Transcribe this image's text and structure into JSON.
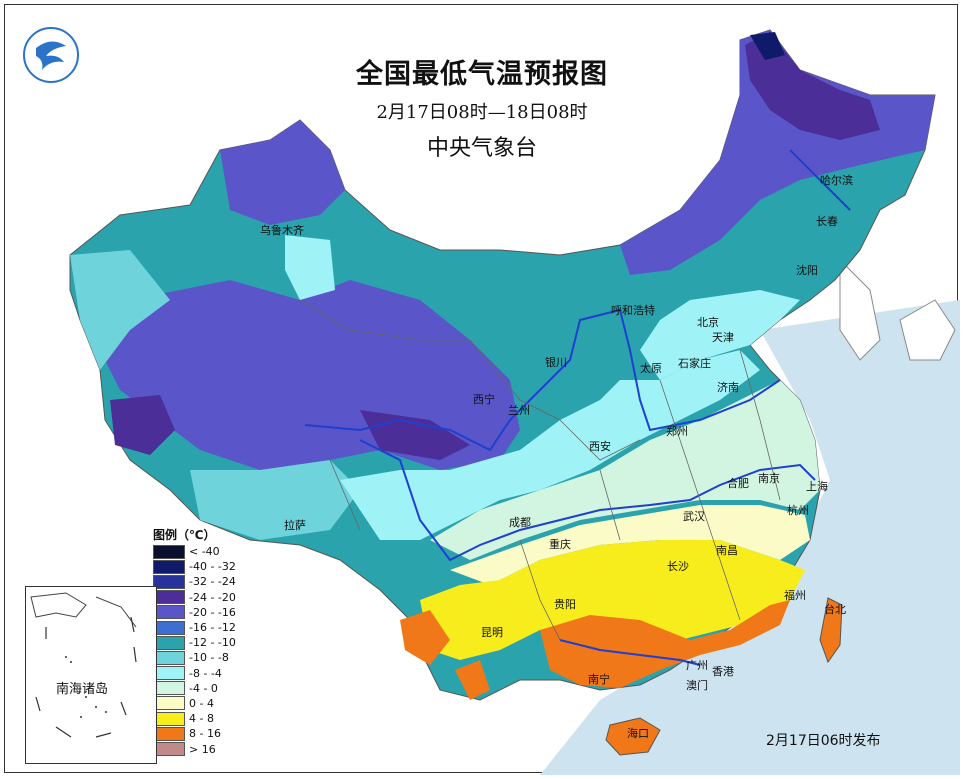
{
  "title": "全国最低气温预报图",
  "subtitle": "2月17日08时—18日08时",
  "issuer": "中央气象台",
  "issued_at": "2月17日06时发布",
  "legend": {
    "title": "图例（℃）",
    "items": [
      {
        "label": "< -40",
        "color": "#0a0f2e"
      },
      {
        "label": "-40 - -32",
        "color": "#101a6b"
      },
      {
        "label": "-32 - -24",
        "color": "#27339a"
      },
      {
        "label": "-24 - -20",
        "color": "#4b2e98"
      },
      {
        "label": "-20 - -16",
        "color": "#5a55c8"
      },
      {
        "label": "-16 - -12",
        "color": "#3d6fd0"
      },
      {
        "label": "-12 - -10",
        "color": "#2aa3ad"
      },
      {
        "label": "-10 - -8",
        "color": "#6fd3dc"
      },
      {
        "label": "-8 - -4",
        "color": "#9ff2f5"
      },
      {
        "label": "-4 - 0",
        "color": "#d2f5e2"
      },
      {
        "label": "0 - 4",
        "color": "#fbfbc8"
      },
      {
        "label": "4 - 8",
        "color": "#f8ed1c"
      },
      {
        "label": "8 - 16",
        "color": "#f07818"
      },
      {
        "label": "> 16",
        "color": "#c08a8a"
      }
    ]
  },
  "inset_label": "南海诸岛",
  "cities": [
    {
      "key": "wulumuqi",
      "label": "乌鲁木齐"
    },
    {
      "key": "haerbin",
      "label": "哈尔滨"
    },
    {
      "key": "changchun",
      "label": "长春"
    },
    {
      "key": "shenyang",
      "label": "沈阳"
    },
    {
      "key": "huhehaote",
      "label": "呼和浩特"
    },
    {
      "key": "beijing",
      "label": "北京"
    },
    {
      "key": "tianjin",
      "label": "天津"
    },
    {
      "key": "yinchuan",
      "label": "银川"
    },
    {
      "key": "taiyuan",
      "label": "太原"
    },
    {
      "key": "shijiazhuang",
      "label": "石家庄"
    },
    {
      "key": "jinan",
      "label": "济南"
    },
    {
      "key": "xining",
      "label": "西宁"
    },
    {
      "key": "lanzhou",
      "label": "兰州"
    },
    {
      "key": "zhengzhou",
      "label": "郑州"
    },
    {
      "key": "xian",
      "label": "西安"
    },
    {
      "key": "hefei",
      "label": "合肥"
    },
    {
      "key": "nanjing",
      "label": "南京"
    },
    {
      "key": "shanghai",
      "label": "上海"
    },
    {
      "key": "hangzhou",
      "label": "杭州"
    },
    {
      "key": "wuhan",
      "label": "武汉"
    },
    {
      "key": "chengdu",
      "label": "成都"
    },
    {
      "key": "lasa",
      "label": "拉萨"
    },
    {
      "key": "chongqing",
      "label": "重庆"
    },
    {
      "key": "changsha",
      "label": "长沙"
    },
    {
      "key": "nanchang",
      "label": "南昌"
    },
    {
      "key": "fuzhou",
      "label": "福州"
    },
    {
      "key": "taibei",
      "label": "台北"
    },
    {
      "key": "guiyang",
      "label": "贵阳"
    },
    {
      "key": "kunming",
      "label": "昆明"
    },
    {
      "key": "nanning",
      "label": "南宁"
    },
    {
      "key": "guangzhou",
      "label": "广州"
    },
    {
      "key": "xianggang",
      "label": "香港"
    },
    {
      "key": "aomen",
      "label": "澳门"
    },
    {
      "key": "haikou",
      "label": "海口"
    }
  ]
}
